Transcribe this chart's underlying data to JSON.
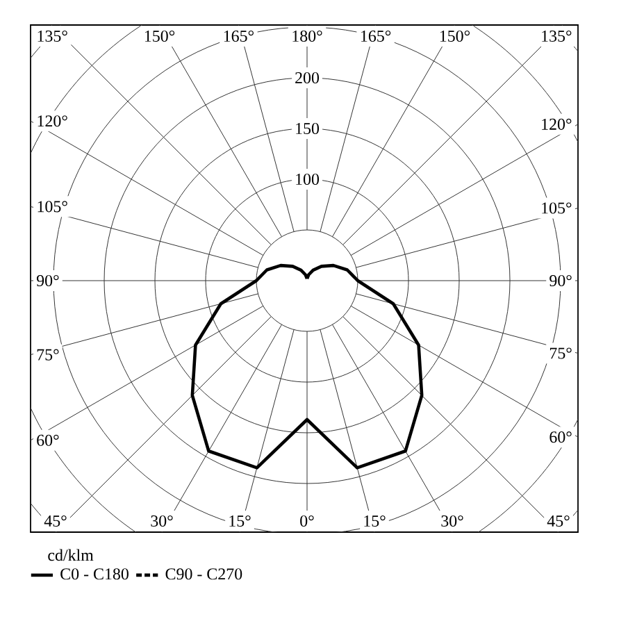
{
  "chart_data": {
    "type": "radar",
    "ylabel": "cd/klm",
    "categories": [
      "180°",
      "165°",
      "150°",
      "135°",
      "120°",
      "105°",
      "90°",
      "75°",
      "60°",
      "45°",
      "30°",
      "15°",
      "0°",
      "15°",
      "30°",
      "45°",
      "60°",
      "75°",
      "90°",
      "105°",
      "120°",
      "135°",
      "150°",
      "165°"
    ],
    "ylim": [
      0,
      350
    ],
    "yticks": [
      100,
      150,
      200
    ],
    "grid": true,
    "legend": "bottom",
    "series": [
      {
        "name": "C0 - C180",
        "color": "#000000",
        "line_style": "solid",
        "values": [
          2,
          6,
          12,
          20,
          30,
          41,
          50,
          88,
          127,
          160,
          194,
          191,
          137,
          191,
          194,
          160,
          127,
          88,
          50,
          41,
          30,
          20,
          12,
          6
        ]
      },
      {
        "name": "C90 - C270",
        "color": "#000000",
        "line_style": "dashed",
        "values": [
          null,
          null,
          null,
          null,
          null,
          null,
          null,
          null,
          null,
          null,
          null,
          null,
          null,
          null,
          null,
          null,
          null,
          null,
          null,
          null,
          null,
          null,
          null,
          null
        ]
      }
    ]
  }
}
